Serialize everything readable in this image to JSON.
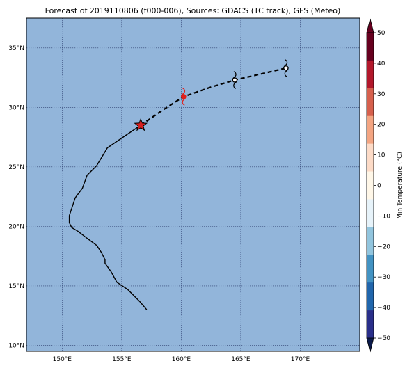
{
  "title": "Forecast of 2019110806 (f000-006), Sources: GDACS (TC track), GFS (Meteo)",
  "map": {
    "lon_range": [
      147,
      175
    ],
    "lat_range": [
      9.5,
      37.5
    ],
    "lon_ticks": [
      150,
      155,
      160,
      165,
      170
    ],
    "lat_ticks": [
      10,
      15,
      20,
      25,
      30,
      35
    ],
    "lon_tick_labels": [
      "150°E",
      "155°E",
      "160°E",
      "165°E",
      "170°E"
    ],
    "lat_tick_labels": [
      "10°N",
      "15°N",
      "20°N",
      "25°N",
      "30°N",
      "35°N"
    ],
    "ocean_color": "#92b5da",
    "grid_color": "#2d3e6e",
    "gridlines": true
  },
  "tracks": {
    "observed": [
      [
        157.1,
        13.0
      ],
      [
        156.5,
        13.7
      ],
      [
        155.5,
        14.7
      ],
      [
        154.6,
        15.3
      ],
      [
        154.1,
        16.2
      ],
      [
        153.6,
        16.9
      ],
      [
        153.6,
        17.2
      ],
      [
        153.3,
        17.8
      ],
      [
        152.9,
        18.4
      ],
      [
        152.1,
        19.0
      ],
      [
        151.3,
        19.6
      ],
      [
        150.8,
        19.9
      ],
      [
        150.6,
        20.3
      ],
      [
        150.6,
        20.9
      ],
      [
        150.8,
        21.5
      ],
      [
        151.1,
        22.4
      ],
      [
        151.7,
        23.2
      ],
      [
        152.1,
        24.3
      ],
      [
        152.9,
        25.1
      ],
      [
        153.8,
        26.6
      ],
      [
        156.6,
        28.5
      ]
    ],
    "forecast": [
      [
        156.6,
        28.5
      ],
      [
        158.5,
        29.8
      ],
      [
        160.2,
        30.9
      ],
      [
        162.5,
        31.7
      ],
      [
        164.5,
        32.3
      ],
      [
        168.8,
        33.3
      ]
    ],
    "current_position": [
      156.6,
      28.5
    ],
    "symbols": [
      {
        "lon": 160.2,
        "lat": 30.9,
        "color": "#e0201c"
      },
      {
        "lon": 164.5,
        "lat": 32.3,
        "color": "#000000"
      },
      {
        "lon": 168.8,
        "lat": 33.3,
        "color": "#000000"
      }
    ]
  },
  "colorbar": {
    "label": "Min Temperature (°C)",
    "ticks": [
      50,
      40,
      30,
      20,
      10,
      0,
      -10,
      -20,
      -30,
      -40,
      -50
    ],
    "tick_labels": [
      "50",
      "40",
      "30",
      "20",
      "10",
      "0",
      "−10",
      "−20",
      "−30",
      "−40",
      "−50"
    ],
    "colors_top_to_bottom": [
      "#67001f",
      "#b2182b",
      "#d6604d",
      "#f4a582",
      "#fddbc7",
      "#fff7e8",
      "#e7f3fa",
      "#92c5de",
      "#4393c3",
      "#2166ac",
      "#2a2f8a"
    ],
    "extend_top_color": "#67001f",
    "extend_bottom_color": "#0b1a4a"
  }
}
